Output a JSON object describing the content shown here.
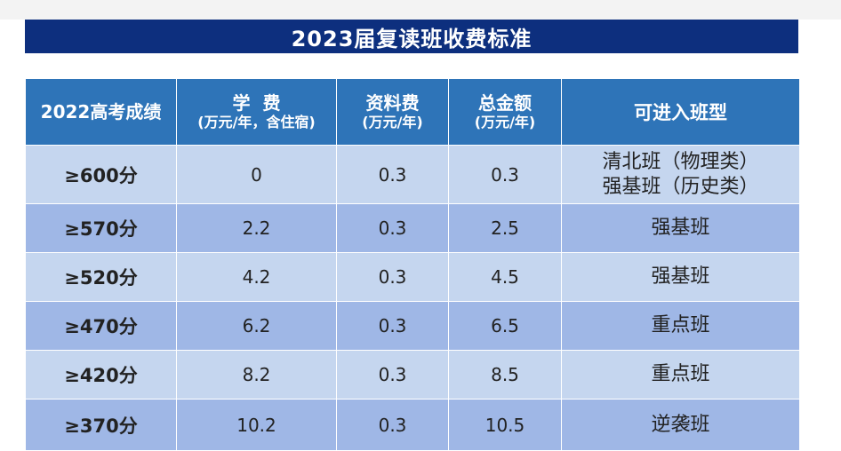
{
  "title": "2023届复读班收费标准",
  "headers": {
    "score": "2022高考成绩",
    "tuition_main": "学  费",
    "tuition_sub": "(万元/年，含住宿)",
    "material_main": "资料费",
    "material_sub": "(万元/年)",
    "total_main": "总金额",
    "total_sub": "(万元/年)",
    "class_type": "可进入班型"
  },
  "rows": [
    {
      "score": "≥600分",
      "tuition": "0",
      "material": "0.3",
      "total": "0.3",
      "class_line1": "清北班（物理类）",
      "class_line2": "强基班（历史类）"
    },
    {
      "score": "≥570分",
      "tuition": "2.2",
      "material": "0.3",
      "total": "2.5",
      "class_line1": "强基班",
      "class_line2": ""
    },
    {
      "score": "≥520分",
      "tuition": "4.2",
      "material": "0.3",
      "total": "4.5",
      "class_line1": "强基班",
      "class_line2": ""
    },
    {
      "score": "≥470分",
      "tuition": "6.2",
      "material": "0.3",
      "total": "6.5",
      "class_line1": "重点班",
      "class_line2": ""
    },
    {
      "score": "≥420分",
      "tuition": "8.2",
      "material": "0.3",
      "total": "8.5",
      "class_line1": "重点班",
      "class_line2": ""
    },
    {
      "score": "≥370分",
      "tuition": "10.2",
      "material": "0.3",
      "total": "10.5",
      "class_line1": "逆袭班",
      "class_line2": ""
    }
  ],
  "colors": {
    "title_bg": "#0d2f7e",
    "header_bg": "#2e74b8",
    "row_light": "#c5d6ef",
    "row_dark": "#9fb7e6"
  }
}
